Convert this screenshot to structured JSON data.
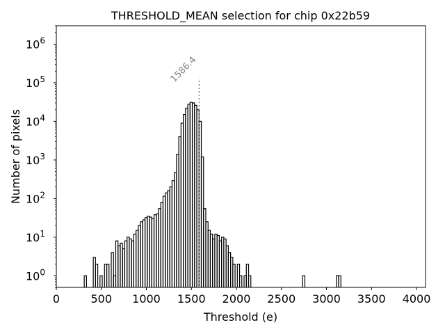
{
  "chart_data": {
    "type": "histogram",
    "title": "THRESHOLD_MEAN selection for chip 0x22b59",
    "xlabel": "Threshold (e)",
    "ylabel": "Number of pixels",
    "xlim": [
      0,
      4100
    ],
    "ylim": [
      0.5,
      3000000
    ],
    "yscale": "log",
    "xticks": [
      0,
      500,
      1000,
      1500,
      2000,
      2500,
      3000,
      3500,
      4000
    ],
    "xtick_labels": [
      "0",
      "500",
      "1000",
      "1500",
      "2000",
      "2500",
      "3000",
      "3500",
      "4000"
    ],
    "yticks": [
      1,
      10,
      100,
      1000,
      10000,
      100000,
      1000000
    ],
    "ytick_labels": [
      [
        "10",
        "0"
      ],
      [
        "10",
        "1"
      ],
      [
        "10",
        "2"
      ],
      [
        "10",
        "3"
      ],
      [
        "10",
        "4"
      ],
      [
        "10",
        "5"
      ],
      [
        "10",
        "6"
      ]
    ],
    "bin_width": 25,
    "bins_start": [
      310,
      410,
      435,
      460,
      485,
      510,
      535,
      560,
      585,
      610,
      635,
      660,
      685,
      710,
      735,
      760,
      785,
      810,
      835,
      860,
      885,
      910,
      935,
      960,
      985,
      1010,
      1035,
      1060,
      1085,
      1110,
      1135,
      1160,
      1185,
      1210,
      1235,
      1260,
      1285,
      1310,
      1335,
      1360,
      1385,
      1410,
      1435,
      1460,
      1485,
      1510,
      1535,
      1560,
      1585,
      1610,
      1635,
      1660,
      1685,
      1710,
      1735,
      1760,
      1785,
      1810,
      1835,
      1860,
      1885,
      1910,
      1935,
      1960,
      1985,
      2010,
      2035,
      2060,
      2085,
      2110,
      2135,
      2160,
      2185,
      2210,
      2235,
      2260,
      2285,
      2310,
      2335,
      2360,
      2385,
      2410,
      2435,
      2460,
      2485,
      2510,
      2535,
      2560,
      2735,
      2760,
      3110,
      3135,
      3160
    ],
    "counts": [
      1,
      3,
      2,
      0,
      1,
      0,
      2,
      2,
      0,
      4,
      1,
      8,
      6,
      7,
      5,
      8,
      10,
      9,
      8,
      12,
      15,
      20,
      25,
      28,
      32,
      35,
      33,
      30,
      38,
      40,
      55,
      80,
      115,
      140,
      160,
      200,
      290,
      470,
      1400,
      4000,
      9000,
      15000,
      22000,
      28000,
      31000,
      30000,
      26000,
      20000,
      10000,
      1200,
      55,
      25,
      15,
      12,
      9,
      12,
      11,
      8,
      10,
      9,
      6,
      4,
      3,
      2,
      0,
      2,
      1,
      0,
      1,
      2,
      1,
      0,
      0,
      0,
      0,
      0,
      0,
      0,
      0,
      0,
      0,
      0,
      0,
      0,
      0,
      0,
      0,
      0,
      1,
      0,
      1,
      1,
      0
    ],
    "selection_line": {
      "x": 1586.4,
      "label": "1586.4",
      "color": "#808080",
      "style": "dotted"
    },
    "series_color": "#000000"
  }
}
